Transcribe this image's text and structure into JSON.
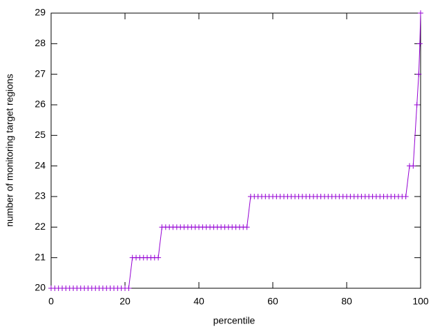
{
  "chart_data": {
    "type": "line",
    "xlabel": "percentile",
    "ylabel": "number of monitoring target regions",
    "x": [
      0,
      1,
      2,
      3,
      4,
      5,
      6,
      7,
      8,
      9,
      10,
      11,
      12,
      13,
      14,
      15,
      16,
      17,
      18,
      19,
      20,
      21,
      22,
      23,
      24,
      25,
      26,
      27,
      28,
      29,
      30,
      31,
      32,
      33,
      34,
      35,
      36,
      37,
      38,
      39,
      40,
      41,
      42,
      43,
      44,
      45,
      46,
      47,
      48,
      49,
      50,
      51,
      52,
      53,
      54,
      55,
      56,
      57,
      58,
      59,
      60,
      61,
      62,
      63,
      64,
      65,
      66,
      67,
      68,
      69,
      70,
      71,
      72,
      73,
      74,
      75,
      76,
      77,
      78,
      79,
      80,
      81,
      82,
      83,
      84,
      85,
      86,
      87,
      88,
      89,
      90,
      91,
      92,
      93,
      94,
      95,
      96,
      97,
      98,
      99,
      99.5,
      99.8,
      100
    ],
    "series": [
      {
        "color": "#9400d3",
        "values": [
          20,
          20,
          20,
          20,
          20,
          20,
          20,
          20,
          20,
          20,
          20,
          20,
          20,
          20,
          20,
          20,
          20,
          20,
          20,
          20,
          20,
          20,
          21,
          21,
          21,
          21,
          21,
          21,
          21,
          21,
          22,
          22,
          22,
          22,
          22,
          22,
          22,
          22,
          22,
          22,
          22,
          22,
          22,
          22,
          22,
          22,
          22,
          22,
          22,
          22,
          22,
          22,
          22,
          22,
          23,
          23,
          23,
          23,
          23,
          23,
          23,
          23,
          23,
          23,
          23,
          23,
          23,
          23,
          23,
          23,
          23,
          23,
          23,
          23,
          23,
          23,
          23,
          23,
          23,
          23,
          23,
          23,
          23,
          23,
          23,
          23,
          23,
          23,
          23,
          23,
          23,
          23,
          23,
          23,
          23,
          23,
          23,
          24,
          24,
          26,
          27,
          28,
          29
        ]
      }
    ],
    "xlim": [
      0,
      100
    ],
    "xticks": [
      0,
      20,
      40,
      60,
      80,
      100
    ],
    "ylim": [
      20,
      29
    ],
    "yticks": [
      20,
      21,
      22,
      23,
      24,
      25,
      26,
      27,
      28,
      29
    ]
  }
}
